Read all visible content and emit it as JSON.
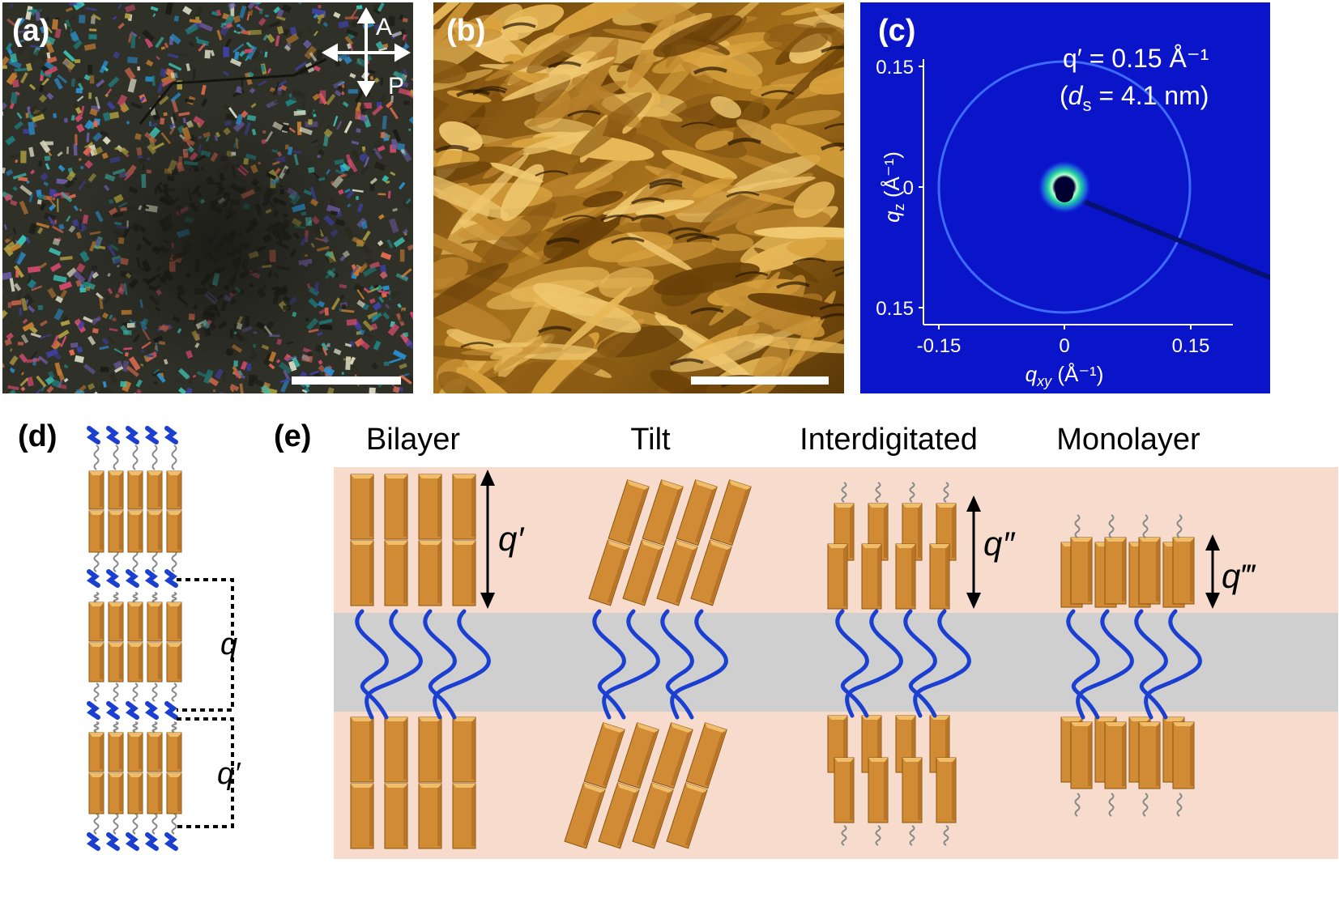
{
  "panels": {
    "a": {
      "label": "(a)",
      "analyzer": "A",
      "polarizer": "P"
    },
    "b": {
      "label": "(b)"
    },
    "c": {
      "label": "(c)",
      "annotation_q": "q′ = 0.15 Å⁻¹",
      "annotation_open": "(",
      "annotation_d": "d",
      "annotation_s": "s",
      "annotation_rest": " = 4.1 nm)",
      "y_label_q": "q",
      "y_label_sub": "z",
      "y_label_unit": " (Å⁻¹)",
      "x_label_q": "q",
      "x_label_sub": "xy",
      "x_label_unit": " (Å⁻¹)",
      "y_ticks": [
        "0.15",
        "0",
        "0.15"
      ],
      "x_ticks": [
        "-0.15",
        "0",
        "0.15"
      ]
    },
    "d": {
      "label": "(d)",
      "spacing_q": "q",
      "spacing_q_prime": "q′"
    },
    "e": {
      "label": "(e)",
      "columns": [
        {
          "title": "Bilayer",
          "spacing": "q′"
        },
        {
          "title": "Tilt"
        },
        {
          "title": "Interdigitated",
          "spacing": "q″"
        },
        {
          "title": "Monolayer",
          "spacing": "q‴"
        }
      ]
    }
  },
  "colors": {
    "rod": "#d08b34",
    "rod_light": "#f0bd6a",
    "chain": "#1a3fd1",
    "spacer": "#888888",
    "layer_bg": "#f7dccd",
    "matrix_bg": "#cfcfcf",
    "saxs_bg": "#0a14c8",
    "afm_bg": "#8a5a10"
  }
}
